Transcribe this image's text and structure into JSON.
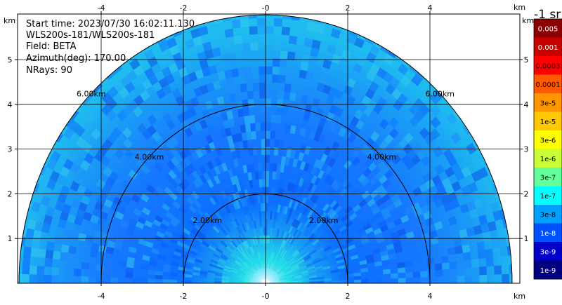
{
  "info": {
    "lines": [
      "Start time: 2023/07/30 16:02:11.130",
      "WLS200s-181/WLS200s-181",
      "Field: BETA",
      "Azimuth(deg): 170.00",
      "NRays: 90"
    ]
  },
  "colorbar": {
    "title": "-1 sr",
    "labels": [
      "0.005",
      "0.001",
      "0.0003",
      "0.0001",
      "3e-5",
      "1e-5",
      "3e-6",
      "1e-6",
      "3e-7",
      "1e-7",
      "3e-8",
      "1e-8",
      "3e-9",
      "1e-9"
    ],
    "colors": [
      "#8b0000",
      "#c80000",
      "#ff0000",
      "#ff5a00",
      "#ff9600",
      "#ffc800",
      "#ffff00",
      "#c8ff37",
      "#64ff9b",
      "#00ffff",
      "#00a0ff",
      "#0050ff",
      "#0000c8",
      "#000080"
    ],
    "label_colors": [
      "#ffffff",
      "#ffffff",
      "#000000",
      "#000000",
      "#000000",
      "#000000",
      "#000000",
      "#000000",
      "#000000",
      "#000000",
      "#000000",
      "#ffffff",
      "#ffffff",
      "#ffffff"
    ]
  },
  "chart_data": {
    "type": "heatmap",
    "title": "",
    "xlabel": "km",
    "ylabel": "km",
    "x_unit": "km",
    "y_unit": "km",
    "xlim": [
      -6.0,
      6.05
    ],
    "ylim": [
      0,
      5.6
    ],
    "x_ticks": [
      -4,
      -2,
      0,
      2,
      4
    ],
    "y_ticks": [
      1,
      2,
      3,
      4,
      5
    ],
    "x_tick_labels": [
      "-4",
      "-2",
      "-0",
      "2",
      "4"
    ],
    "y_tick_labels": [
      "1",
      "2",
      "3",
      "4",
      "5"
    ],
    "range_rings_km": [
      2,
      4,
      6
    ],
    "range_ring_labels": [
      "2.00km",
      "4.00km",
      "6.00km"
    ],
    "max_range_km": 6.0,
    "azimuth_deg": 170.0,
    "n_rays": 90,
    "field": "BETA",
    "grid": true
  }
}
